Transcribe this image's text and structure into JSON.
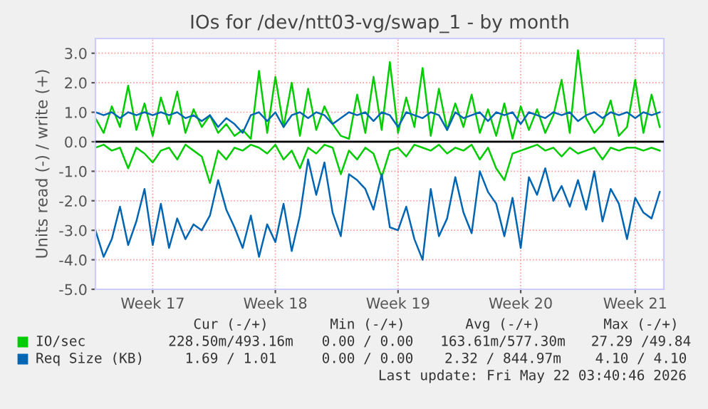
{
  "chart_data": {
    "type": "line",
    "title": "IOs for /dev/ntt03-vg/swap_1 - by month",
    "ylabel": "Units read (-) / write (+)",
    "categories": [
      null,
      null,
      null,
      null,
      null,
      null,
      null,
      "Week 17",
      null,
      null,
      null,
      null,
      null,
      null,
      null,
      null,
      null,
      null,
      null,
      null,
      null,
      null,
      "Week 18",
      null,
      null,
      null,
      null,
      null,
      null,
      null,
      null,
      null,
      null,
      null,
      null,
      null,
      null,
      "Week 19",
      null,
      null,
      null,
      null,
      null,
      null,
      null,
      null,
      null,
      null,
      null,
      null,
      null,
      null,
      "Week 20",
      null,
      null,
      null,
      null,
      null,
      null,
      null,
      null,
      null,
      null,
      null,
      null,
      null,
      "Week 21",
      null,
      null,
      null
    ],
    "series": [
      {
        "name": "IO/sec",
        "color": "#00cc00",
        "values": [
          0.8,
          0.3,
          1.2,
          0.5,
          1.9,
          0.4,
          1.3,
          0.2,
          1.5,
          0.6,
          1.7,
          0.3,
          1.1,
          0.5,
          0.9,
          0.3,
          0.6,
          0.2,
          0.4,
          0.1,
          2.4,
          0.3,
          2.2,
          0.5,
          2.0,
          0.2,
          1.8,
          0.4,
          1.2,
          0.6,
          0.2,
          0.1,
          1.6,
          0.3,
          2.2,
          0.4,
          2.7,
          0.3,
          1.5,
          0.5,
          2.5,
          0.2,
          1.8,
          0.4,
          1.3,
          0.5,
          1.6,
          0.3,
          1.1,
          0.2,
          1.3,
          0.1,
          1.2,
          0.4,
          1.1,
          0.3,
          0.9,
          2.1,
          0.3,
          3.1,
          0.8,
          0.3,
          0.6,
          1.4,
          0.2,
          0.5,
          2.1,
          0.3,
          1.6,
          0.5
        ]
      },
      {
        "color": "#00cc00",
        "values": [
          -0.2,
          -0.1,
          -0.3,
          -0.2,
          -0.9,
          -0.2,
          -0.4,
          -0.7,
          -0.3,
          -0.2,
          -0.6,
          -0.1,
          -0.3,
          -0.5,
          -1.4,
          -0.3,
          -0.6,
          -0.2,
          -0.3,
          -0.1,
          -0.2,
          -0.4,
          -0.1,
          -0.6,
          -0.3,
          -0.9,
          -0.2,
          -0.4,
          -0.1,
          -0.2,
          -1.1,
          -0.3,
          -0.6,
          -0.2,
          -0.4,
          -1.2,
          -0.3,
          -0.2,
          -0.5,
          -0.1,
          -0.2,
          -0.3,
          -0.1,
          -0.4,
          -0.2,
          -0.3,
          -0.1,
          -0.6,
          -0.2,
          -0.9,
          -1.3,
          -0.4,
          -0.3,
          -0.2,
          -0.1,
          -0.3,
          -0.2,
          -0.5,
          -0.2,
          -0.4,
          -0.3,
          -0.2,
          -0.6,
          -0.2,
          -0.3,
          -0.2,
          -0.2,
          -0.3,
          -0.2,
          -0.3
        ]
      },
      {
        "name": "Req Size (KB)",
        "color": "#0066b3",
        "values": [
          1.0,
          0.9,
          1.0,
          0.8,
          1.0,
          0.9,
          1.0,
          0.9,
          1.0,
          0.9,
          1.0,
          0.8,
          0.9,
          0.7,
          0.9,
          0.5,
          0.8,
          0.6,
          0.3,
          0.9,
          1.0,
          0.7,
          1.0,
          0.5,
          0.9,
          1.0,
          0.8,
          1.0,
          0.9,
          0.6,
          0.8,
          1.0,
          0.9,
          1.0,
          0.7,
          1.0,
          0.9,
          0.5,
          1.0,
          0.9,
          0.8,
          1.0,
          0.9,
          0.4,
          1.0,
          0.8,
          0.9,
          1.0,
          0.7,
          1.0,
          0.9,
          1.0,
          0.6,
          1.0,
          0.9,
          0.8,
          1.0,
          0.9,
          1.0,
          0.7,
          0.9,
          1.0,
          0.8,
          1.0,
          0.9,
          1.0,
          0.8,
          1.0,
          0.9,
          1.0
        ]
      },
      {
        "color": "#0066b3",
        "values": [
          -3.0,
          -3.9,
          -3.3,
          -2.2,
          -3.5,
          -2.7,
          -1.6,
          -3.5,
          -2.1,
          -3.6,
          -2.6,
          -3.3,
          -2.8,
          -3.0,
          -2.5,
          -1.3,
          -2.3,
          -2.9,
          -3.6,
          -2.5,
          -3.9,
          -2.8,
          -3.4,
          -2.1,
          -3.7,
          -2.5,
          -0.6,
          -1.8,
          -0.7,
          -2.4,
          -3.2,
          -1.1,
          -1.3,
          -1.6,
          -2.3,
          -1.1,
          -2.9,
          -3.0,
          -2.2,
          -3.3,
          -4.0,
          -1.6,
          -3.2,
          -2.6,
          -1.2,
          -2.4,
          -3.1,
          -1.0,
          -1.7,
          -2.1,
          -3.2,
          -1.9,
          -3.6,
          -1.2,
          -1.8,
          -0.9,
          -2.0,
          -1.5,
          -2.2,
          -1.3,
          -2.3,
          -1.0,
          -2.7,
          -1.6,
          -2.1,
          -3.3,
          -1.9,
          -2.4,
          -2.6,
          -1.7
        ]
      }
    ],
    "ylim": [
      -5.0,
      3.5
    ],
    "yticks": [
      {
        "value": -5,
        "label": "-5.0"
      },
      {
        "value": -4,
        "label": "-4.0"
      },
      {
        "value": -3,
        "label": "-3.0"
      },
      {
        "value": -2,
        "label": "-2.0"
      },
      {
        "value": -1,
        "label": "-1.0"
      },
      {
        "value": 0,
        "label": "0.0"
      },
      {
        "value": 1,
        "label": "1.0"
      },
      {
        "value": 2,
        "label": "2.0"
      },
      {
        "value": 3,
        "label": "3.0"
      }
    ],
    "grid": true,
    "ref_lines": [
      {
        "axis": "y",
        "value": 0,
        "color": "#000000"
      }
    ],
    "legend": "bottom",
    "annotations": [
      "Cur (-/+)",
      "Min (-/+)",
      "Avg (-/+)",
      "Max (-/+)",
      "228.50m/493.16m",
      "0.00 / 0.00",
      "163.61m/577.30m",
      "27.29 /49.84",
      "1.69 / 1.01",
      "0.00 / 0.00",
      "2.32 / 844.97m",
      "4.10 / 4.10",
      "Last update: Fri May 22 03:40:46 2026"
    ]
  }
}
